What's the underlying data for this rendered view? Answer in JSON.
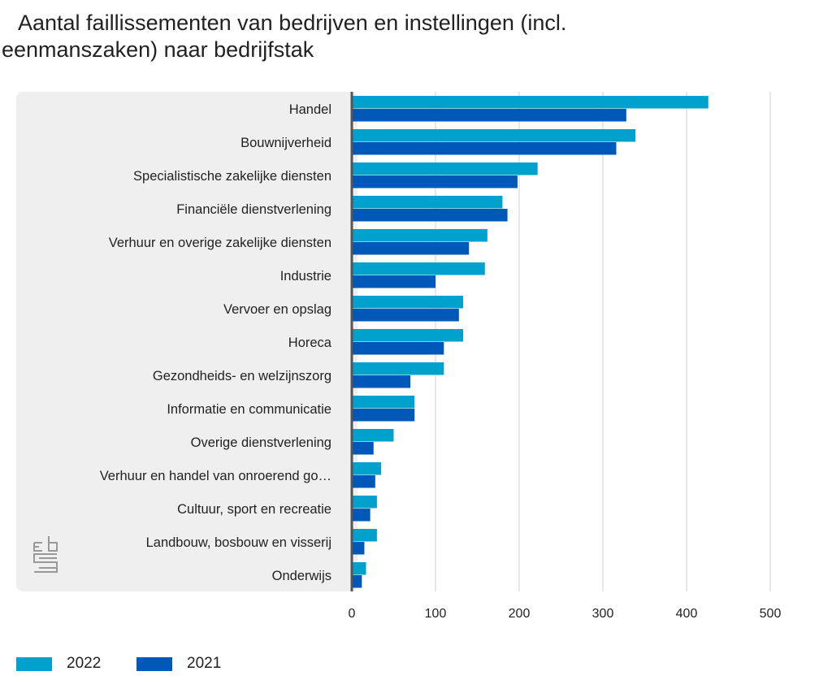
{
  "title": {
    "line1": "Aantal faillissementen van bedrijven en instellingen (incl.",
    "line2": "eenmanszaken) naar bedrijfstak"
  },
  "logo": "cbs",
  "chart_data": {
    "type": "bar",
    "orientation": "horizontal",
    "categories": [
      "Handel",
      "Bouwnijverheid",
      "Specialistische zakelijke diensten",
      "Financiële dienstverlening",
      "Verhuur en overige zakelijke diensten",
      "Industrie",
      "Vervoer en opslag",
      "Horeca",
      "Gezondheids- en welzijnszorg",
      "Informatie en communicatie",
      "Overige dienstverlening",
      "Verhuur en handel van onroerend go…",
      "Cultuur, sport en recreatie",
      "Landbouw, bosbouw en visserij",
      "Onderwijs"
    ],
    "series": [
      {
        "name": "2022",
        "color": "#00a1cd",
        "values": [
          426,
          339,
          222,
          180,
          162,
          159,
          133,
          133,
          110,
          75,
          50,
          35,
          30,
          30,
          17
        ]
      },
      {
        "name": "2021",
        "color": "#0058b8",
        "values": [
          328,
          316,
          198,
          186,
          140,
          100,
          128,
          110,
          70,
          75,
          26,
          28,
          22,
          15,
          12
        ]
      }
    ],
    "xlim": [
      0,
      500
    ],
    "xticks": [
      "0",
      "100",
      "200",
      "300",
      "400",
      "500"
    ],
    "grid": true,
    "legend": "bottom-left"
  }
}
